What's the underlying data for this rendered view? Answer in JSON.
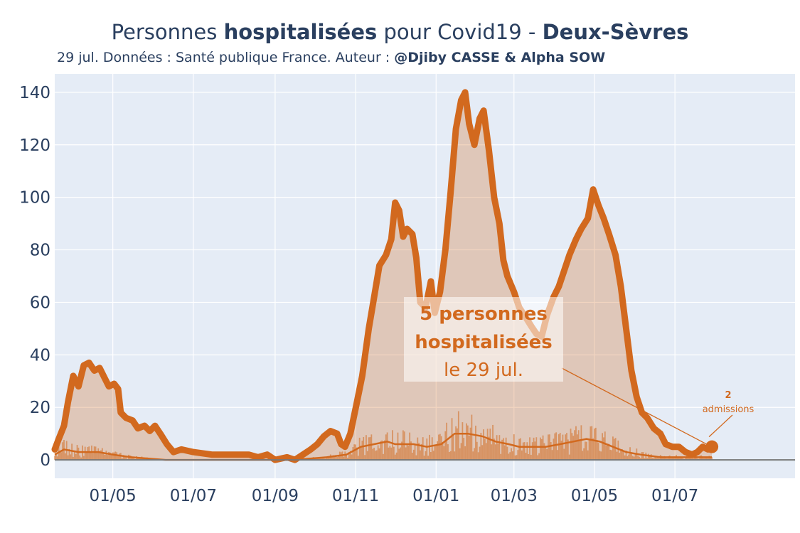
{
  "title": {
    "part1": "Personnes ",
    "bold1": "hospitalisées",
    "part2": " pour Covid19 - ",
    "bold2": "Deux-Sèvres"
  },
  "subtitle": {
    "text": "29 jul. Données : Santé publique France. Auteur : ",
    "author": "@Djiby CASSE & Alpha SOW"
  },
  "annotation": {
    "line1": "5 personnes",
    "line2": "hospitalisées",
    "line3": "le 29 jul."
  },
  "admissions": {
    "value": "2",
    "label": "admissions"
  },
  "colors": {
    "main": "#d2691e",
    "fill": "#e8c0a6",
    "plot_bg": "#e5ecf6",
    "grid": "#ffffff",
    "text": "#2a3f5f"
  },
  "chart_data": {
    "type": "area",
    "x_axis": {
      "range": [
        "2020-03-18",
        "2021-09-30"
      ],
      "ticks": [
        {
          "date": "2020-05-01",
          "label": "01/05"
        },
        {
          "date": "2020-07-01",
          "label": "01/07"
        },
        {
          "date": "2020-09-01",
          "label": "01/09"
        },
        {
          "date": "2020-11-01",
          "label": "01/11"
        },
        {
          "date": "2021-01-01",
          "label": "01/01"
        },
        {
          "date": "2021-03-01",
          "label": "01/03"
        },
        {
          "date": "2021-05-01",
          "label": "01/05"
        },
        {
          "date": "2021-07-01",
          "label": "01/07"
        }
      ]
    },
    "y_axis": {
      "range": [
        -7,
        147
      ],
      "ticks": [
        0,
        20,
        40,
        60,
        80,
        100,
        120,
        140
      ]
    },
    "grid": true,
    "series": [
      {
        "kind": "hospitalisations",
        "points": [
          [
            "2020-03-18",
            4
          ],
          [
            "2020-03-21",
            8
          ],
          [
            "2020-03-25",
            13
          ],
          [
            "2020-03-28",
            22
          ],
          [
            "2020-04-01",
            32
          ],
          [
            "2020-04-05",
            28
          ],
          [
            "2020-04-09",
            36
          ],
          [
            "2020-04-13",
            37
          ],
          [
            "2020-04-17",
            34
          ],
          [
            "2020-04-21",
            35
          ],
          [
            "2020-04-25",
            31
          ],
          [
            "2020-04-28",
            28
          ],
          [
            "2020-05-02",
            29
          ],
          [
            "2020-05-05",
            27
          ],
          [
            "2020-05-07",
            18
          ],
          [
            "2020-05-11",
            16
          ],
          [
            "2020-05-16",
            15
          ],
          [
            "2020-05-20",
            12
          ],
          [
            "2020-05-25",
            13
          ],
          [
            "2020-05-29",
            11
          ],
          [
            "2020-06-02",
            13
          ],
          [
            "2020-06-06",
            10
          ],
          [
            "2020-06-11",
            6
          ],
          [
            "2020-06-16",
            3
          ],
          [
            "2020-06-22",
            4
          ],
          [
            "2020-07-01",
            3
          ],
          [
            "2020-07-15",
            2
          ],
          [
            "2020-07-29",
            2
          ],
          [
            "2020-08-12",
            2
          ],
          [
            "2020-08-19",
            1
          ],
          [
            "2020-08-26",
            2
          ],
          [
            "2020-09-01",
            0
          ],
          [
            "2020-09-10",
            1
          ],
          [
            "2020-09-16",
            0
          ],
          [
            "2020-09-22",
            2
          ],
          [
            "2020-09-28",
            4
          ],
          [
            "2020-10-03",
            6
          ],
          [
            "2020-10-08",
            9
          ],
          [
            "2020-10-13",
            11
          ],
          [
            "2020-10-18",
            10
          ],
          [
            "2020-10-21",
            6
          ],
          [
            "2020-10-24",
            5
          ],
          [
            "2020-10-28",
            10
          ],
          [
            "2020-11-02",
            22
          ],
          [
            "2020-11-06",
            32
          ],
          [
            "2020-11-11",
            50
          ],
          [
            "2020-11-15",
            62
          ],
          [
            "2020-11-19",
            74
          ],
          [
            "2020-11-24",
            78
          ],
          [
            "2020-11-28",
            84
          ],
          [
            "2020-12-01",
            98
          ],
          [
            "2020-12-04",
            95
          ],
          [
            "2020-12-07",
            85
          ],
          [
            "2020-12-10",
            88
          ],
          [
            "2020-12-14",
            86
          ],
          [
            "2020-12-17",
            77
          ],
          [
            "2020-12-20",
            60
          ],
          [
            "2020-12-24",
            58
          ],
          [
            "2020-12-28",
            68
          ],
          [
            "2020-12-31",
            56
          ],
          [
            "2021-01-04",
            64
          ],
          [
            "2021-01-08",
            80
          ],
          [
            "2021-01-12",
            102
          ],
          [
            "2021-01-16",
            126
          ],
          [
            "2021-01-20",
            137
          ],
          [
            "2021-01-23",
            140
          ],
          [
            "2021-01-26",
            128
          ],
          [
            "2021-01-30",
            120
          ],
          [
            "2021-02-03",
            130
          ],
          [
            "2021-02-06",
            133
          ],
          [
            "2021-02-10",
            118
          ],
          [
            "2021-02-14",
            100
          ],
          [
            "2021-02-18",
            90
          ],
          [
            "2021-02-21",
            76
          ],
          [
            "2021-02-24",
            70
          ],
          [
            "2021-03-01",
            64
          ],
          [
            "2021-03-05",
            58
          ],
          [
            "2021-03-09",
            55
          ],
          [
            "2021-03-14",
            51
          ],
          [
            "2021-03-18",
            48
          ],
          [
            "2021-03-22",
            47
          ],
          [
            "2021-03-26",
            55
          ],
          [
            "2021-03-31",
            62
          ],
          [
            "2021-04-04",
            66
          ],
          [
            "2021-04-08",
            72
          ],
          [
            "2021-04-12",
            78
          ],
          [
            "2021-04-17",
            84
          ],
          [
            "2021-04-21",
            88
          ],
          [
            "2021-04-26",
            92
          ],
          [
            "2021-04-30",
            103
          ],
          [
            "2021-05-04",
            97
          ],
          [
            "2021-05-08",
            92
          ],
          [
            "2021-05-12",
            86
          ],
          [
            "2021-05-17",
            78
          ],
          [
            "2021-05-21",
            66
          ],
          [
            "2021-05-25",
            50
          ],
          [
            "2021-05-29",
            34
          ],
          [
            "2021-06-02",
            24
          ],
          [
            "2021-06-06",
            18
          ],
          [
            "2021-06-10",
            16
          ],
          [
            "2021-06-15",
            12
          ],
          [
            "2021-06-20",
            10
          ],
          [
            "2021-06-24",
            6
          ],
          [
            "2021-06-29",
            5
          ],
          [
            "2021-07-04",
            5
          ],
          [
            "2021-07-09",
            3
          ],
          [
            "2021-07-14",
            2
          ],
          [
            "2021-07-18",
            3
          ],
          [
            "2021-07-22",
            5
          ],
          [
            "2021-07-26",
            4
          ],
          [
            "2021-07-29",
            5
          ]
        ]
      },
      {
        "kind": "admissions (moyenne 7 jours)",
        "points": [
          [
            "2020-03-18",
            2
          ],
          [
            "2020-03-25",
            4
          ],
          [
            "2020-04-05",
            3
          ],
          [
            "2020-04-20",
            3
          ],
          [
            "2020-05-01",
            2
          ],
          [
            "2020-05-15",
            1
          ],
          [
            "2020-06-10",
            0
          ],
          [
            "2020-09-15",
            0
          ],
          [
            "2020-10-10",
            1
          ],
          [
            "2020-10-25",
            2
          ],
          [
            "2020-11-05",
            5
          ],
          [
            "2020-11-15",
            6
          ],
          [
            "2020-11-25",
            7
          ],
          [
            "2020-12-01",
            6
          ],
          [
            "2020-12-15",
            6
          ],
          [
            "2020-12-25",
            5
          ],
          [
            "2021-01-05",
            6
          ],
          [
            "2021-01-15",
            10
          ],
          [
            "2021-01-25",
            10
          ],
          [
            "2021-02-05",
            9
          ],
          [
            "2021-02-15",
            7
          ],
          [
            "2021-02-25",
            6
          ],
          [
            "2021-03-05",
            5
          ],
          [
            "2021-03-15",
            5
          ],
          [
            "2021-03-25",
            5
          ],
          [
            "2021-04-05",
            6
          ],
          [
            "2021-04-15",
            7
          ],
          [
            "2021-04-25",
            8
          ],
          [
            "2021-05-05",
            7
          ],
          [
            "2021-05-15",
            5
          ],
          [
            "2021-05-25",
            3
          ],
          [
            "2021-06-05",
            2
          ],
          [
            "2021-06-20",
            1
          ],
          [
            "2021-07-10",
            1
          ],
          [
            "2021-07-29",
            1
          ]
        ]
      }
    ],
    "last_point": {
      "date": "2021-07-29",
      "value": 5
    }
  }
}
